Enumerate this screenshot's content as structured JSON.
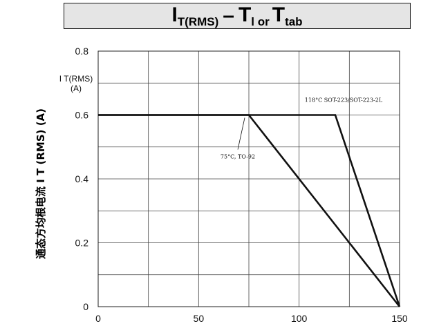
{
  "chart_data": {
    "type": "line",
    "title": {
      "main1": "I",
      "sub1": "T(RMS)",
      "dash": "–",
      "main2": "T",
      "sub2": "l or",
      "main3": "T",
      "sub3": "tab"
    },
    "ylabel": "通态方均根电流 I T (RMS) (A)",
    "inner_ylabel": {
      "line1": "I T(RMS)",
      "line2": "(A)"
    },
    "xlim": [
      0,
      150
    ],
    "ylim": [
      0,
      0.8
    ],
    "x_ticks": [
      "0",
      "50",
      "100",
      "150"
    ],
    "y_ticks": [
      "0",
      "0.2",
      "0.4",
      "0.6",
      "0.8"
    ],
    "grid": true,
    "series": [
      {
        "name": "75°C, TO-92",
        "x": [
          0,
          75,
          150
        ],
        "y": [
          0.6,
          0.6,
          0
        ]
      },
      {
        "name": "118°C SOT-223/SOT-223-2L",
        "x": [
          0,
          118,
          150
        ],
        "y": [
          0.6,
          0.6,
          0
        ]
      }
    ],
    "annotations": [
      {
        "text": "75°C, TO-92",
        "x": 75,
        "y": 0.6
      },
      {
        "text": "118°C SOT-223/SOT-223-2L",
        "x": 118,
        "y": 0.6
      }
    ]
  }
}
